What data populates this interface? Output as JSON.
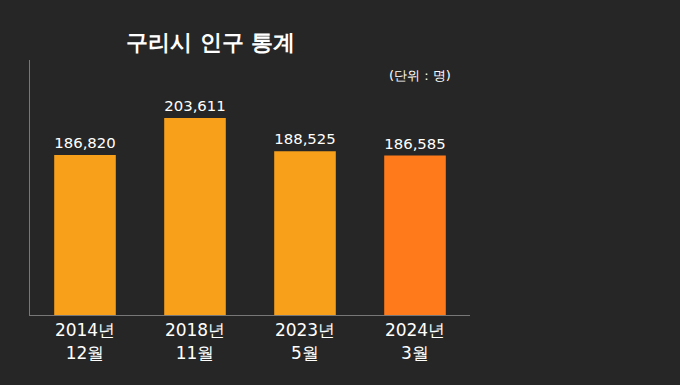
{
  "chart_data": {
    "type": "bar",
    "title": "구리시 인구 통계",
    "unit_label": "(단위 : 명)",
    "categories": [
      "2014년\n12월",
      "2018년\n11월",
      "2023년\n5월",
      "2024년\n3월"
    ],
    "values": [
      186820,
      203611,
      188525,
      186585
    ],
    "value_labels": [
      "186,820",
      "203,611",
      "188,525",
      "186,585"
    ],
    "colors": [
      "#f9a01b",
      "#f9a01b",
      "#f9a01b",
      "#ff7a1a"
    ],
    "ylim": [
      114000,
      230000
    ],
    "yticks": [],
    "grid": false,
    "data_labels": true,
    "tick_labels": "x"
  }
}
